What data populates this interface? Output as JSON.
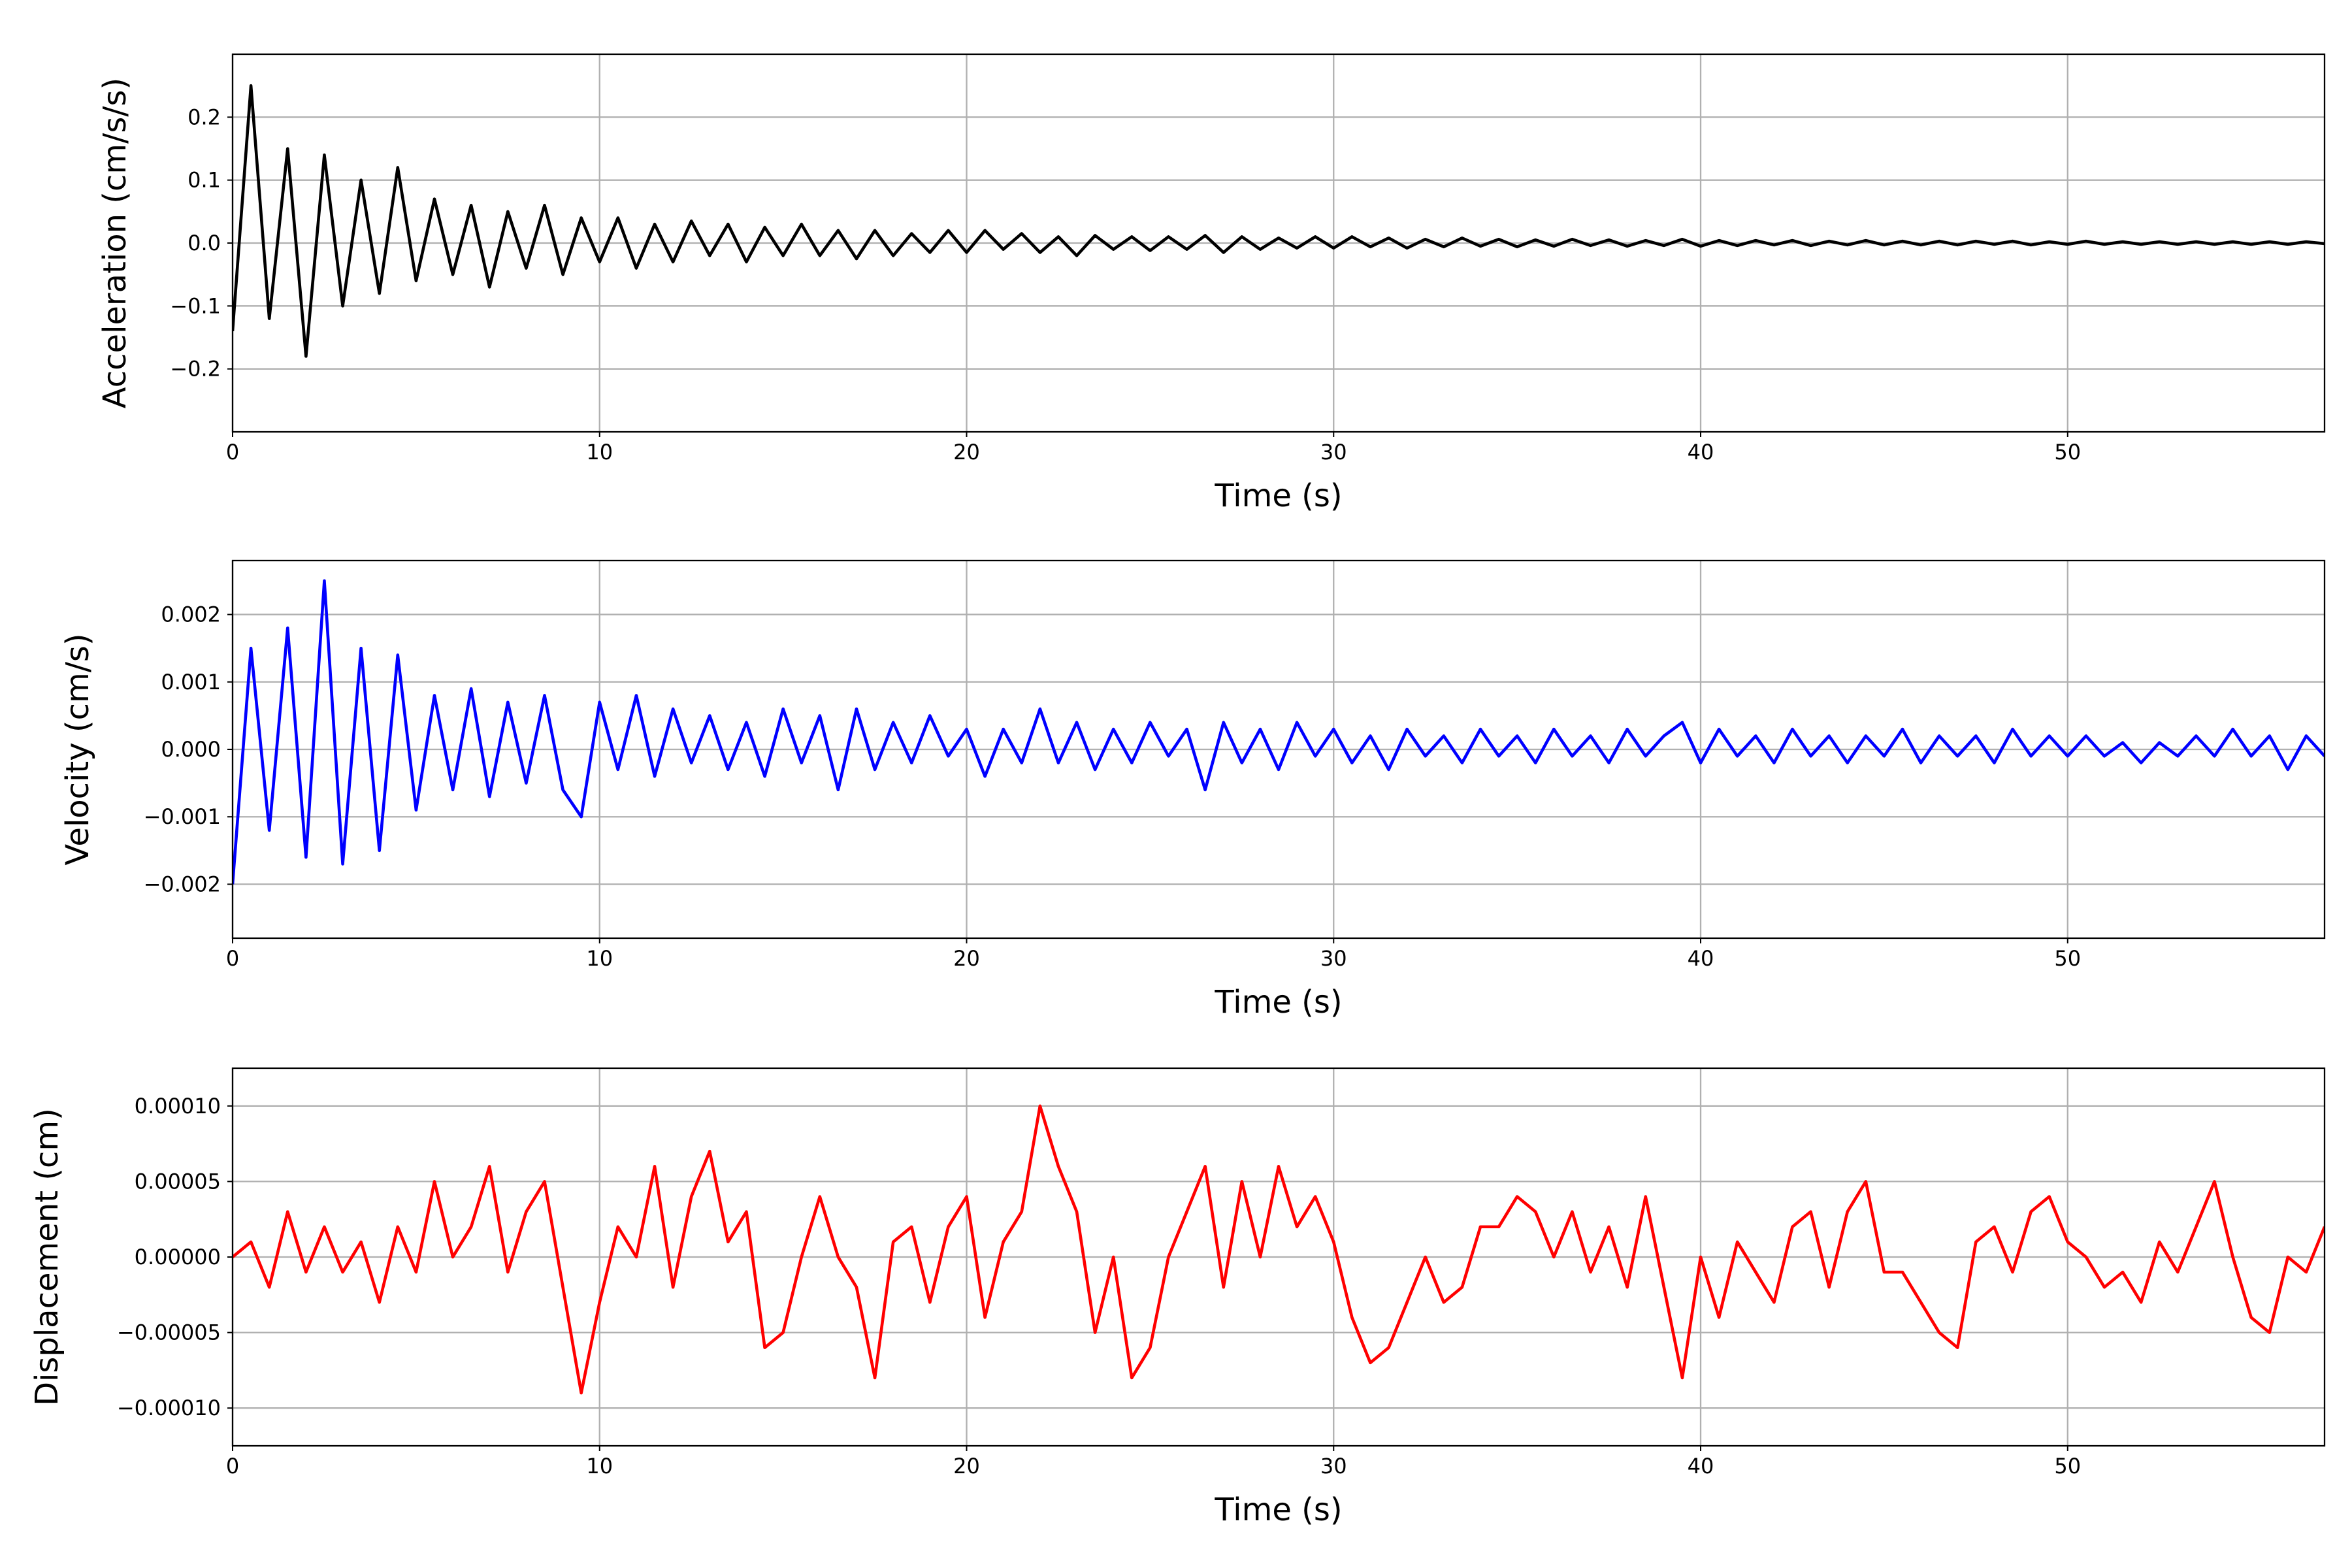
{
  "chart_data": [
    {
      "type": "line",
      "xlabel": "Time (s)",
      "ylabel": "Acceleration (cm/s/s)",
      "x": [
        0,
        0.5,
        1,
        1.5,
        2,
        2.5,
        3,
        3.5,
        4,
        4.5,
        5,
        5.5,
        6,
        6.5,
        7,
        7.5,
        8,
        8.5,
        9,
        9.5,
        10,
        10.5,
        11,
        11.5,
        12,
        12.5,
        13,
        13.5,
        14,
        14.5,
        15,
        15.5,
        16,
        16.5,
        17,
        17.5,
        18,
        18.5,
        19,
        19.5,
        20,
        20.5,
        21,
        21.5,
        22,
        22.5,
        23,
        23.5,
        24,
        24.5,
        25,
        25.5,
        26,
        26.5,
        27,
        27.5,
        28,
        28.5,
        29,
        29.5,
        30,
        30.5,
        31,
        31.5,
        32,
        32.5,
        33,
        33.5,
        34,
        34.5,
        35,
        35.5,
        36,
        36.5,
        37,
        37.5,
        38,
        38.5,
        39,
        39.5,
        40,
        40.5,
        41,
        41.5,
        42,
        42.5,
        43,
        43.5,
        44,
        44.5,
        45,
        45.5,
        46,
        46.5,
        47,
        47.5,
        48,
        48.5,
        49,
        49.5,
        50,
        50.5,
        51,
        51.5,
        52,
        52.5,
        53,
        53.5,
        54,
        54.5,
        55,
        55.5,
        56,
        56.5,
        57
      ],
      "series": [
        {
          "name": "Acceleration",
          "color": "#000000",
          "values": [
            -0.14,
            0.25,
            -0.12,
            0.15,
            -0.18,
            0.14,
            -0.1,
            0.1,
            -0.08,
            0.12,
            -0.06,
            0.07,
            -0.05,
            0.06,
            -0.07,
            0.05,
            -0.04,
            0.06,
            -0.05,
            0.04,
            -0.03,
            0.04,
            -0.04,
            0.03,
            -0.03,
            0.035,
            -0.02,
            0.03,
            -0.03,
            0.025,
            -0.02,
            0.03,
            -0.02,
            0.02,
            -0.025,
            0.02,
            -0.02,
            0.015,
            -0.015,
            0.02,
            -0.015,
            0.02,
            -0.01,
            0.015,
            -0.015,
            0.01,
            -0.02,
            0.012,
            -0.01,
            0.01,
            -0.012,
            0.01,
            -0.01,
            0.012,
            -0.015,
            0.01,
            -0.01,
            0.008,
            -0.008,
            0.01,
            -0.008,
            0.01,
            -0.006,
            0.008,
            -0.008,
            0.006,
            -0.006,
            0.008,
            -0.005,
            0.006,
            -0.006,
            0.005,
            -0.005,
            0.006,
            -0.004,
            0.005,
            -0.005,
            0.004,
            -0.004,
            0.006,
            -0.005,
            0.004,
            -0.004,
            0.004,
            -0.003,
            0.004,
            -0.004,
            0.003,
            -0.003,
            0.004,
            -0.003,
            0.003,
            -0.003,
            0.003,
            -0.003,
            0.003,
            -0.002,
            0.003,
            -0.003,
            0.002,
            -0.002,
            0.003,
            -0.002,
            0.002,
            -0.002,
            0.002,
            -0.002,
            0.002,
            -0.002,
            0.002,
            -0.002,
            0.002,
            -0.002,
            0.002,
            -0.001
          ]
        }
      ],
      "xlim": [
        0,
        57
      ],
      "xticks": [
        0,
        10,
        20,
        30,
        40,
        50
      ],
      "ylim": [
        -0.3,
        0.3
      ],
      "yticks": [
        {
          "value": -0.2,
          "label": "−0.2"
        },
        {
          "value": -0.1,
          "label": "−0.1"
        },
        {
          "value": 0,
          "label": "0.0"
        },
        {
          "value": 0.1,
          "label": "0.1"
        },
        {
          "value": 0.2,
          "label": "0.2"
        }
      ],
      "grid": true
    },
    {
      "type": "line",
      "xlabel": "Time (s)",
      "ylabel": "Velocity (cm/s)",
      "x": [
        0,
        0.5,
        1,
        1.5,
        2,
        2.5,
        3,
        3.5,
        4,
        4.5,
        5,
        5.5,
        6,
        6.5,
        7,
        7.5,
        8,
        8.5,
        9,
        9.5,
        10,
        10.5,
        11,
        11.5,
        12,
        12.5,
        13,
        13.5,
        14,
        14.5,
        15,
        15.5,
        16,
        16.5,
        17,
        17.5,
        18,
        18.5,
        19,
        19.5,
        20,
        20.5,
        21,
        21.5,
        22,
        22.5,
        23,
        23.5,
        24,
        24.5,
        25,
        25.5,
        26,
        26.5,
        27,
        27.5,
        28,
        28.5,
        29,
        29.5,
        30,
        30.5,
        31,
        31.5,
        32,
        32.5,
        33,
        33.5,
        34,
        34.5,
        35,
        35.5,
        36,
        36.5,
        37,
        37.5,
        38,
        38.5,
        39,
        39.5,
        40,
        40.5,
        41,
        41.5,
        42,
        42.5,
        43,
        43.5,
        44,
        44.5,
        45,
        45.5,
        46,
        46.5,
        47,
        47.5,
        48,
        48.5,
        49,
        49.5,
        50,
        50.5,
        51,
        51.5,
        52,
        52.5,
        53,
        53.5,
        54,
        54.5,
        55,
        55.5,
        56,
        56.5,
        57
      ],
      "series": [
        {
          "name": "Velocity",
          "color": "#0000ff",
          "values": [
            -0.002,
            0.0015,
            -0.0012,
            0.0018,
            -0.0016,
            0.0025,
            -0.0017,
            0.0015,
            -0.0015,
            0.0014,
            -0.0009,
            0.0008,
            -0.0006,
            0.0009,
            -0.0007,
            0.0007,
            -0.0005,
            0.0008,
            -0.0006,
            -0.001,
            0.0007,
            -0.0003,
            0.0008,
            -0.0004,
            0.0006,
            -0.0002,
            0.0005,
            -0.0003,
            0.0004,
            -0.0004,
            0.0006,
            -0.0002,
            0.0005,
            -0.0006,
            0.0006,
            -0.0003,
            0.0004,
            -0.0002,
            0.0005,
            -0.0001,
            0.0003,
            -0.0004,
            0.0003,
            -0.0002,
            0.0006,
            -0.0002,
            0.0004,
            -0.0003,
            0.0003,
            -0.0002,
            0.0004,
            -0.0001,
            0.0003,
            -0.0006,
            0.0004,
            -0.0002,
            0.0003,
            -0.0003,
            0.0004,
            -0.0001,
            0.0003,
            -0.0002,
            0.0002,
            -0.0003,
            0.0003,
            -0.0001,
            0.0002,
            -0.0002,
            0.0003,
            -0.0001,
            0.0002,
            -0.0002,
            0.0003,
            -0.0001,
            0.0002,
            -0.0002,
            0.0003,
            -0.0001,
            0.0002,
            0.0004,
            -0.0002,
            0.0003,
            -0.0001,
            0.0002,
            -0.0002,
            0.0003,
            -0.0001,
            0.0002,
            -0.0002,
            0.0002,
            -0.0001,
            0.0003,
            -0.0002,
            0.0002,
            -0.0001,
            0.0002,
            -0.0002,
            0.0003,
            -0.0001,
            0.0002,
            -0.0001,
            0.0002,
            -0.0001,
            0.0001,
            -0.0002,
            0.0001,
            -0.0001,
            0.0002,
            -0.0001,
            0.0003,
            -0.0001,
            0.0002,
            -0.0003,
            0.0002,
            -0.0001
          ]
        }
      ],
      "xlim": [
        0,
        57
      ],
      "xticks": [
        0,
        10,
        20,
        30,
        40,
        50
      ],
      "ylim": [
        -0.0028,
        0.0028
      ],
      "yticks": [
        {
          "value": -0.002,
          "label": "−0.002"
        },
        {
          "value": -0.001,
          "label": "−0.001"
        },
        {
          "value": 0,
          "label": "0.000"
        },
        {
          "value": 0.001,
          "label": "0.001"
        },
        {
          "value": 0.002,
          "label": "0.002"
        }
      ],
      "grid": true
    },
    {
      "type": "line",
      "xlabel": "Time (s)",
      "ylabel": "Displacement (cm)",
      "x": [
        0,
        0.5,
        1,
        1.5,
        2,
        2.5,
        3,
        3.5,
        4,
        4.5,
        5,
        5.5,
        6,
        6.5,
        7,
        7.5,
        8,
        8.5,
        9,
        9.5,
        10,
        10.5,
        11,
        11.5,
        12,
        12.5,
        13,
        13.5,
        14,
        14.5,
        15,
        15.5,
        16,
        16.5,
        17,
        17.5,
        18,
        18.5,
        19,
        19.5,
        20,
        20.5,
        21,
        21.5,
        22,
        22.5,
        23,
        23.5,
        24,
        24.5,
        25,
        25.5,
        26,
        26.5,
        27,
        27.5,
        28,
        28.5,
        29,
        29.5,
        30,
        30.5,
        31,
        31.5,
        32,
        32.5,
        33,
        33.5,
        34,
        34.5,
        35,
        35.5,
        36,
        36.5,
        37,
        37.5,
        38,
        38.5,
        39,
        39.5,
        40,
        40.5,
        41,
        41.5,
        42,
        42.5,
        43,
        43.5,
        44,
        44.5,
        45,
        45.5,
        46,
        46.5,
        47,
        47.5,
        48,
        48.5,
        49,
        49.5,
        50,
        50.5,
        51,
        51.5,
        52,
        52.5,
        53,
        53.5,
        54,
        54.5,
        55,
        55.5,
        56,
        56.5,
        57
      ],
      "series": [
        {
          "name": "Displacement",
          "color": "#ff0000",
          "values": [
            0,
            1e-05,
            -2e-05,
            3e-05,
            -1e-05,
            2e-05,
            -1e-05,
            1e-05,
            -3e-05,
            2e-05,
            -1e-05,
            5e-05,
            0,
            2e-05,
            6e-05,
            -1e-05,
            3e-05,
            5e-05,
            -2e-05,
            -9e-05,
            -3e-05,
            2e-05,
            0,
            6e-05,
            -2e-05,
            4e-05,
            7e-05,
            1e-05,
            3e-05,
            -6e-05,
            -5e-05,
            0,
            4e-05,
            0,
            -2e-05,
            -8e-05,
            1e-05,
            2e-05,
            -3e-05,
            2e-05,
            4e-05,
            -4e-05,
            1e-05,
            3e-05,
            0.0001,
            6e-05,
            3e-05,
            -5e-05,
            0,
            -8e-05,
            -6e-05,
            0,
            3e-05,
            6e-05,
            -2e-05,
            5e-05,
            0,
            6e-05,
            2e-05,
            4e-05,
            1e-05,
            -4e-05,
            -7e-05,
            -6e-05,
            -3e-05,
            0,
            -3e-05,
            -2e-05,
            2e-05,
            2e-05,
            4e-05,
            3e-05,
            0,
            3e-05,
            -1e-05,
            2e-05,
            -2e-05,
            4e-05,
            -2e-05,
            -8e-05,
            0,
            -4e-05,
            1e-05,
            -1e-05,
            -3e-05,
            2e-05,
            3e-05,
            -2e-05,
            3e-05,
            5e-05,
            -1e-05,
            -1e-05,
            -3e-05,
            -5e-05,
            -6e-05,
            1e-05,
            2e-05,
            -1e-05,
            3e-05,
            4e-05,
            1e-05,
            0,
            -2e-05,
            -1e-05,
            -3e-05,
            1e-05,
            -1e-05,
            2e-05,
            5e-05,
            0,
            -4e-05,
            -5e-05,
            0,
            -1e-05,
            2e-05
          ]
        }
      ],
      "xlim": [
        0,
        57
      ],
      "xticks": [
        0,
        10,
        20,
        30,
        40,
        50
      ],
      "ylim": [
        -0.000125,
        0.000125
      ],
      "yticks": [
        {
          "value": -0.0001,
          "label": "−0.00010"
        },
        {
          "value": -5e-05,
          "label": "−0.00005"
        },
        {
          "value": 0,
          "label": "0.00000"
        },
        {
          "value": 5e-05,
          "label": "0.00005"
        },
        {
          "value": 0.0001,
          "label": "0.00010"
        }
      ],
      "grid": true
    }
  ]
}
